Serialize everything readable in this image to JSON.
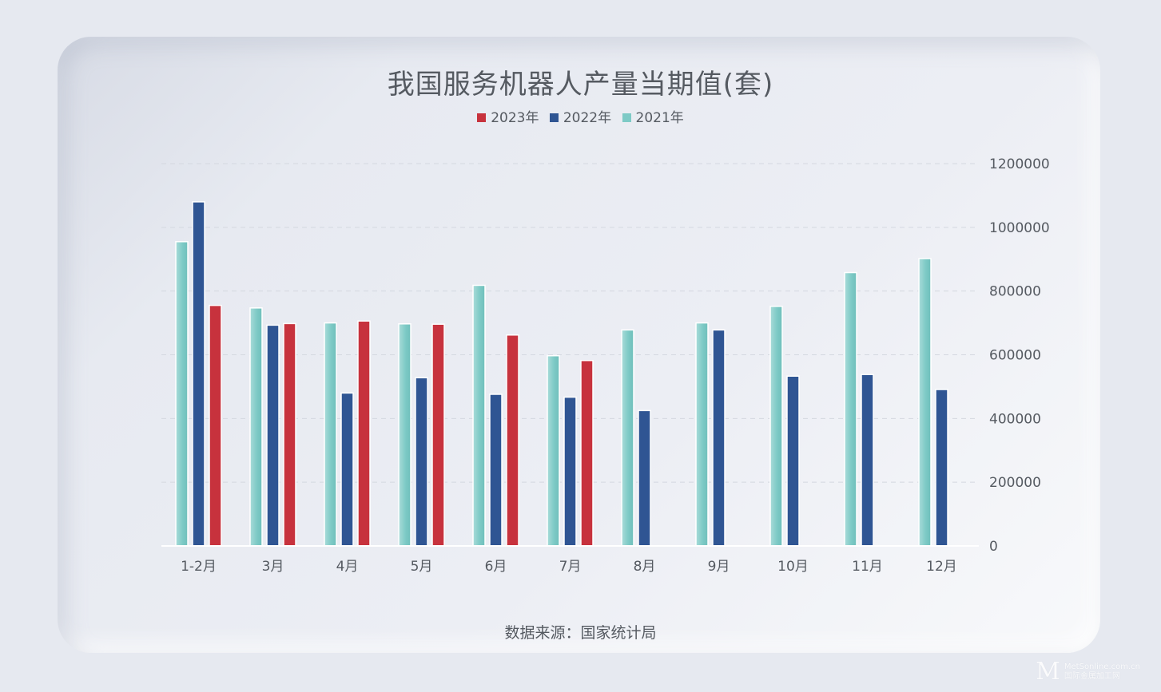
{
  "chart_data": {
    "type": "bar",
    "title": "我国服务机器人产量当期值(套)",
    "categories": [
      "1-2月",
      "3月",
      "4月",
      "5月",
      "6月",
      "7月",
      "8月",
      "9月",
      "10月",
      "11月",
      "12月"
    ],
    "series": [
      {
        "name": "2021年",
        "color": "#7ecac6",
        "values": [
          955000,
          747000,
          700000,
          697000,
          818000,
          597000,
          678000,
          700000,
          752000,
          858000,
          902000
        ]
      },
      {
        "name": "2022年",
        "color": "#2f5593",
        "values": [
          1080000,
          693000,
          480000,
          528000,
          476000,
          467000,
          425000,
          678000,
          533000,
          538000,
          491000
        ]
      },
      {
        "name": "2023年",
        "color": "#c7323d",
        "values": [
          755000,
          698000,
          706000,
          696000,
          662000,
          582000,
          null,
          null,
          null,
          null,
          null
        ]
      }
    ],
    "legend_order": [
      "2023年",
      "2022年",
      "2021年"
    ],
    "legend_position": "top",
    "y_axis_position": "right",
    "ylim": [
      0,
      1200000
    ],
    "yticks": [
      0,
      200000,
      400000,
      600000,
      800000,
      1000000,
      1200000
    ],
    "grid": "horizontal-dashed",
    "xlabel": "",
    "ylabel": ""
  },
  "legend": [
    {
      "label": "2023年",
      "color": "#c7323d"
    },
    {
      "label": "2022年",
      "color": "#2f5593"
    },
    {
      "label": "2021年",
      "color": "#7ecac6"
    }
  ],
  "source": "数据来源：国家统计局",
  "watermark": {
    "logo": "M",
    "site": "MetSonline.com.cn",
    "name": "国际金属加工网"
  }
}
